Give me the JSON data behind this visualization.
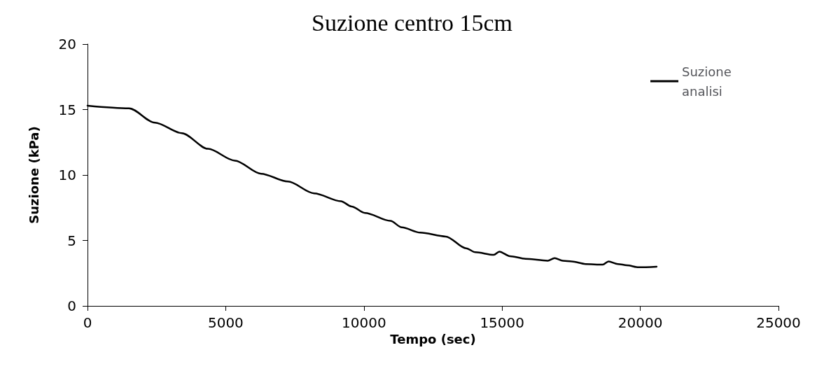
{
  "chart_data": {
    "type": "line",
    "title": "Suzione centro 15cm",
    "xlabel": "Tempo (sec)",
    "ylabel": "Suzione (kPa)",
    "xlim": [
      0,
      25000
    ],
    "xticks": [
      0,
      5000,
      10000,
      15000,
      20000,
      25000
    ],
    "ylim": [
      0,
      20
    ],
    "yticks": [
      0,
      5,
      10,
      15,
      20
    ],
    "grid": false,
    "legend": "top right",
    "marker": "none",
    "line_style": "solid",
    "series": [
      {
        "name": "Suzione analisi",
        "color": "#000000",
        "x": [
          0,
          1500,
          2440,
          3410,
          4360,
          5330,
          6280,
          7250,
          8200,
          9170,
          9550,
          10040,
          10960,
          11370,
          12040,
          12960,
          13700,
          14030,
          14700,
          14900,
          15280,
          15850,
          16650,
          16900,
          17200,
          17520,
          18020,
          18640,
          18850,
          19190,
          19520,
          19940,
          20590
        ],
        "values": [
          15.3,
          15.1,
          14.0,
          13.2,
          12.0,
          11.1,
          10.1,
          9.5,
          8.6,
          8.0,
          7.6,
          7.1,
          6.5,
          6.0,
          5.6,
          5.3,
          4.4,
          4.1,
          3.9,
          4.15,
          3.8,
          3.6,
          3.45,
          3.65,
          3.45,
          3.4,
          3.2,
          3.15,
          3.4,
          3.2,
          3.1,
          2.95,
          3.0
        ]
      }
    ]
  }
}
